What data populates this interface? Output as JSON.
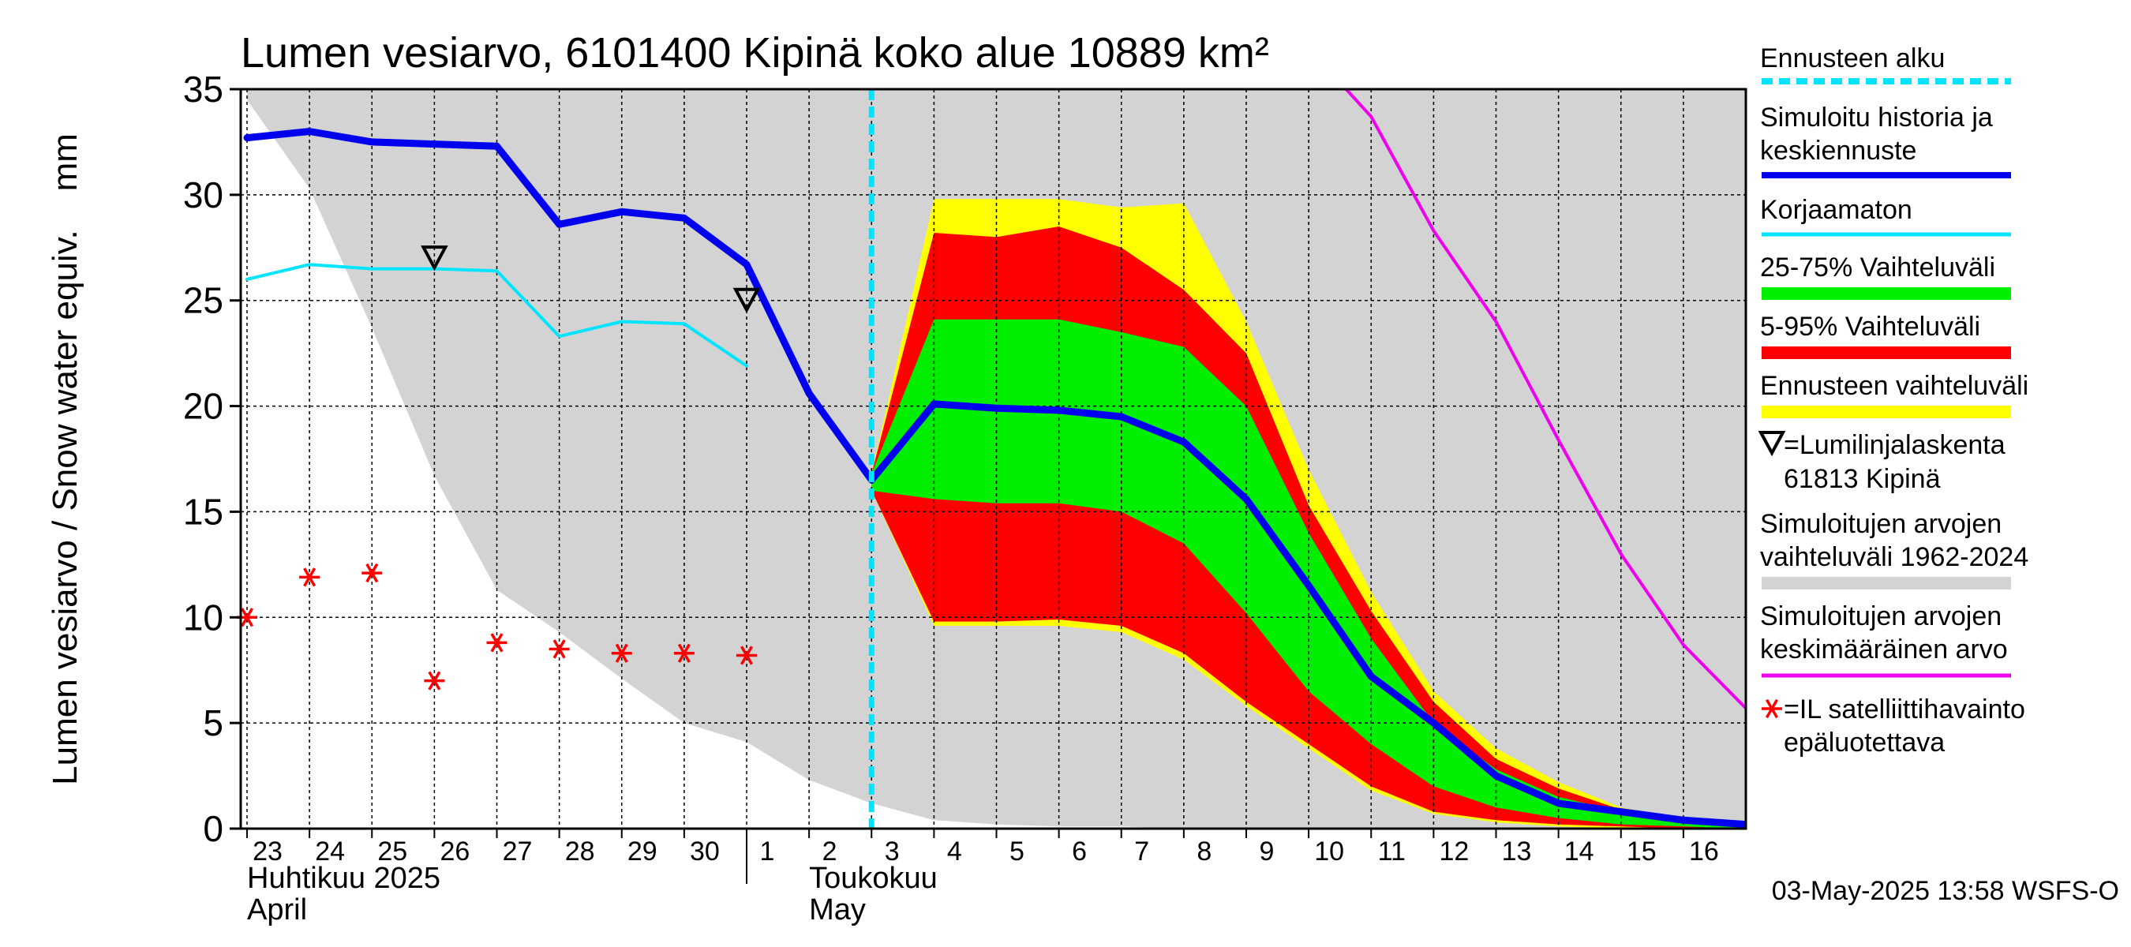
{
  "chart_data": {
    "type": "area",
    "title": "Lumen vesiarvo, 6101400 Kipinä koko alue 10889 km²",
    "ylabel": "Lumen vesiarvo / Snow water equiv.    mm",
    "ylim": [
      0,
      35
    ],
    "y_ticks": [
      0,
      5,
      10,
      15,
      20,
      25,
      30,
      35
    ],
    "x_range": [
      0,
      24
    ],
    "x_ticks": [
      {
        "x": 0,
        "label": "23"
      },
      {
        "x": 1,
        "label": "24"
      },
      {
        "x": 2,
        "label": "25"
      },
      {
        "x": 3,
        "label": "26"
      },
      {
        "x": 4,
        "label": "27"
      },
      {
        "x": 5,
        "label": "28"
      },
      {
        "x": 6,
        "label": "29"
      },
      {
        "x": 7,
        "label": "30"
      },
      {
        "x": 8,
        "label": "1"
      },
      {
        "x": 9,
        "label": "2"
      },
      {
        "x": 10,
        "label": "3"
      },
      {
        "x": 11,
        "label": "4"
      },
      {
        "x": 12,
        "label": "5"
      },
      {
        "x": 13,
        "label": "6"
      },
      {
        "x": 14,
        "label": "7"
      },
      {
        "x": 15,
        "label": "8"
      },
      {
        "x": 16,
        "label": "9"
      },
      {
        "x": 17,
        "label": "10"
      },
      {
        "x": 18,
        "label": "11"
      },
      {
        "x": 19,
        "label": "12"
      },
      {
        "x": 20,
        "label": "13"
      },
      {
        "x": 21,
        "label": "14"
      },
      {
        "x": 22,
        "label": "15"
      },
      {
        "x": 23,
        "label": "16"
      }
    ],
    "month_labels": {
      "april_fi": "Huhtikuu  2025",
      "april_en": "April",
      "may_fi": "Toukokuu",
      "may_en": "May"
    },
    "forecast_start_x": 10,
    "historical_range": {
      "x": [
        0,
        1,
        2,
        3,
        4,
        5,
        6,
        7,
        8,
        9,
        10,
        11,
        12,
        13,
        14,
        15,
        16,
        17,
        18,
        19,
        20,
        21,
        22,
        23,
        24
      ],
      "upper": [
        35,
        35,
        35,
        35,
        35,
        35,
        35,
        35,
        35,
        35,
        35,
        35,
        35,
        35,
        35,
        35,
        35,
        35,
        35,
        35,
        35,
        35,
        35,
        35,
        35
      ],
      "lower": [
        34.5,
        30.3,
        23.7,
        16.7,
        11.3,
        9.3,
        7.1,
        5.0,
        4.1,
        2.3,
        1.2,
        0.4,
        0.2,
        0.1,
        0.1,
        0.0,
        0.0,
        0.0,
        0.0,
        0.0,
        0.0,
        0.0,
        0.0,
        0.0,
        0.0
      ]
    },
    "forecast_bands": {
      "x": [
        10,
        11,
        12,
        13,
        14,
        15,
        16,
        17,
        18,
        19,
        20,
        21,
        22,
        23,
        24
      ],
      "full_upper": [
        16.8,
        29.8,
        29.8,
        29.8,
        29.4,
        29.6,
        24.0,
        17.0,
        11.2,
        6.5,
        3.8,
        2.2,
        1.0,
        0.5,
        0.3
      ],
      "p95": [
        16.8,
        28.2,
        28.0,
        28.5,
        27.5,
        25.5,
        22.5,
        15.3,
        10.3,
        6.0,
        3.3,
        1.9,
        0.9,
        0.4,
        0.2
      ],
      "p75": [
        16.8,
        24.1,
        24.1,
        24.1,
        23.5,
        22.8,
        20.0,
        14.0,
        9.0,
        5.0,
        2.8,
        1.5,
        0.8,
        0.3,
        0.2
      ],
      "p25": [
        16.0,
        15.6,
        15.4,
        15.4,
        15.0,
        13.5,
        10.2,
        6.5,
        4.0,
        2.0,
        1.0,
        0.5,
        0.2,
        0.1,
        0.0
      ],
      "p5": [
        16.0,
        9.8,
        9.8,
        9.9,
        9.6,
        8.3,
        6.0,
        4.0,
        2.0,
        0.8,
        0.4,
        0.2,
        0.1,
        0.0,
        0.0
      ],
      "full_lower": [
        16.0,
        9.6,
        9.6,
        9.6,
        9.3,
        8.0,
        5.8,
        3.8,
        1.8,
        0.7,
        0.3,
        0.1,
        0.0,
        0.0,
        0.0
      ]
    },
    "series": [
      {
        "name": "Simuloitu historia ja keskiennuste",
        "color": "#0000ee",
        "x": [
          0,
          1,
          2,
          3,
          4,
          5,
          6,
          7,
          8,
          9,
          10,
          11,
          12,
          13,
          14,
          15,
          16,
          17,
          18,
          19,
          20,
          21,
          22,
          23,
          24
        ],
        "values": [
          32.7,
          33.0,
          32.5,
          32.4,
          32.3,
          28.6,
          29.2,
          28.9,
          26.7,
          20.6,
          16.5,
          20.1,
          19.9,
          19.8,
          19.5,
          18.3,
          15.6,
          11.5,
          7.2,
          5.0,
          2.5,
          1.2,
          0.8,
          0.4,
          0.2
        ]
      },
      {
        "name": "Korjaamaton",
        "color": "#00e5ff",
        "x": [
          0,
          1,
          2,
          3,
          4,
          5,
          6,
          7,
          8
        ],
        "values": [
          26.0,
          26.7,
          26.5,
          26.5,
          26.4,
          23.3,
          24.0,
          23.9,
          21.9
        ]
      },
      {
        "name": "Simuloitujen arvojen keskimääräinen arvo",
        "color": "#ee00ee",
        "x": [
          17.6,
          18,
          19,
          20,
          21,
          22,
          23,
          24
        ],
        "values": [
          35.0,
          33.7,
          28.3,
          24.0,
          18.4,
          13.0,
          8.7,
          5.7
        ]
      }
    ],
    "snow_line_markers": {
      "name": "Lumilinjalaskenta 61813 Kipinä",
      "x": [
        3,
        8
      ],
      "values": [
        27.0,
        25.0
      ]
    },
    "satellite_observations": {
      "name": "IL satelliittihavainto epäluotettava",
      "x": [
        0,
        1,
        2,
        3,
        4,
        5,
        6,
        7,
        8
      ],
      "values": [
        10.0,
        11.9,
        12.1,
        7.0,
        8.8,
        8.5,
        8.3,
        8.3,
        8.2
      ]
    },
    "legend": [
      {
        "key": "forecast_start",
        "label_lines": [
          "Ennusteen alku"
        ],
        "color": "#00e5ff"
      },
      {
        "key": "simulated",
        "label_lines": [
          "Simuloitu historia ja",
          "keskiennuste"
        ],
        "color": "#0000ee"
      },
      {
        "key": "uncorrected",
        "label_lines": [
          "Korjaamaton"
        ],
        "color": "#00e5ff"
      },
      {
        "key": "p25_75",
        "label_lines": [
          "25-75% Vaihteluväli"
        ],
        "color": "#00ee00"
      },
      {
        "key": "p5_95",
        "label_lines": [
          "5-95% Vaihteluväli"
        ],
        "color": "#ff0000"
      },
      {
        "key": "forecast_range",
        "label_lines": [
          "Ennusteen vaihteluväli"
        ],
        "color": "#ffff00"
      },
      {
        "key": "snowline",
        "label_lines": [
          "=Lumilinjalaskenta",
          "61813 Kipinä"
        ],
        "color": "#000000"
      },
      {
        "key": "hist_range",
        "label_lines": [
          "Simuloitujen arvojen",
          "vaihteluväli 1962-2024"
        ],
        "color": "#d3d3d3"
      },
      {
        "key": "hist_mean",
        "label_lines": [
          "Simuloitujen arvojen",
          "keskimääräinen arvo"
        ],
        "color": "#ee00ee"
      },
      {
        "key": "satellite",
        "label_lines": [
          "=IL satelliittihavainto",
          "epäluotettava"
        ],
        "color": "#ff0000"
      }
    ],
    "timestamp": "03-May-2025 13:58 WSFS-O"
  }
}
